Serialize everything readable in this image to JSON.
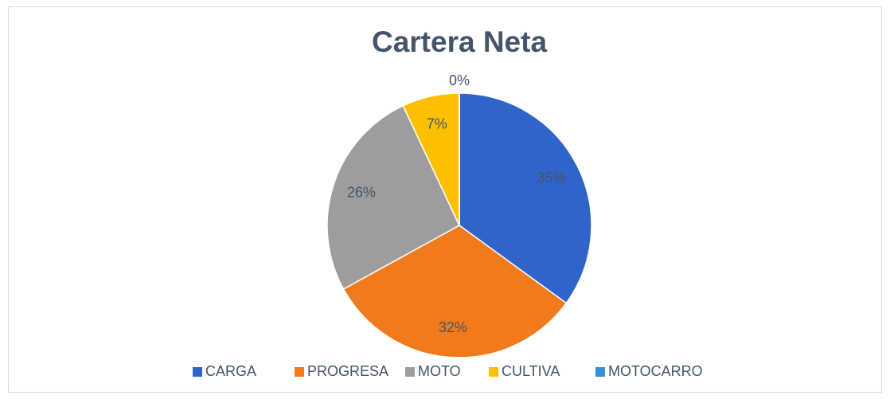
{
  "chart_data": {
    "type": "pie",
    "title": "Cartera Neta",
    "categories": [
      "CARGA",
      "PROGRESA",
      "MOTO",
      "CULTIVA",
      "MOTOCARRO"
    ],
    "values": [
      35,
      32,
      26,
      7,
      0
    ],
    "value_labels": [
      "35%",
      "32%",
      "26%",
      "7%",
      "0%"
    ],
    "colors": [
      "#2f64c9",
      "#f07a1c",
      "#9d9d9d",
      "#fcc000",
      "#3c8fd4"
    ],
    "legend": "bottom"
  }
}
